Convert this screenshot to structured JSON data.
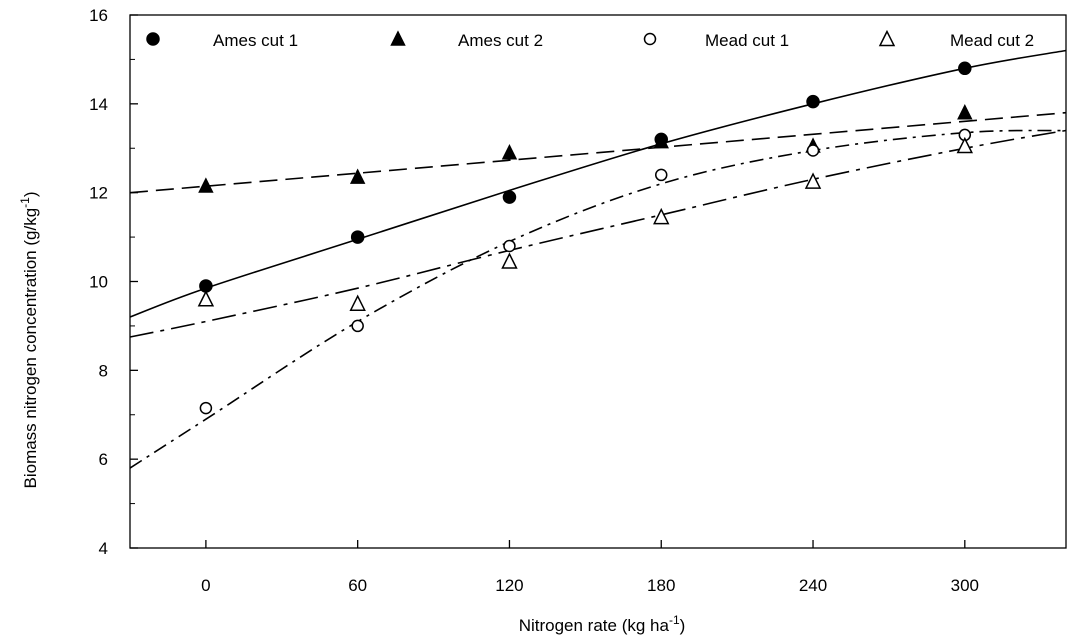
{
  "chart_data": {
    "type": "scatter",
    "title": "",
    "xlabel": "Nitrogen rate (kg ha",
    "xlabel_sup": "-1",
    "xlabel_close": ")",
    "ylabel": "Biomass nitrogen concentration (g/kg",
    "ylabel_sup": "-1",
    "ylabel_close": ")",
    "xlim": [
      -30,
      340
    ],
    "ylim": [
      4,
      16
    ],
    "xticks": [
      0,
      60,
      120,
      180,
      240,
      300
    ],
    "yticks": [
      4,
      6,
      8,
      10,
      12,
      14,
      16
    ],
    "grid": false,
    "legend_position": "top",
    "series": [
      {
        "name": "Ames cut 1",
        "marker": "filled-circle",
        "line": "solid",
        "x": [
          0,
          60,
          120,
          180,
          240,
          300
        ],
        "y": [
          9.9,
          11.0,
          11.9,
          13.2,
          14.05,
          14.8
        ],
        "fit_x": [
          -30,
          0,
          60,
          120,
          180,
          240,
          300,
          340
        ],
        "fit_y": [
          9.2,
          9.85,
          10.95,
          12.05,
          13.1,
          14.0,
          14.8,
          15.2
        ]
      },
      {
        "name": "Ames cut 2",
        "marker": "filled-triangle",
        "line": "dashed",
        "x": [
          0,
          60,
          120,
          180,
          240,
          300
        ],
        "y": [
          12.15,
          12.35,
          12.9,
          13.15,
          13.05,
          13.8
        ],
        "fit_x": [
          -30,
          340
        ],
        "fit_y": [
          12.0,
          13.8
        ]
      },
      {
        "name": "Mead cut 1",
        "marker": "open-circle",
        "line": "dash-dot",
        "x": [
          0,
          60,
          120,
          180,
          240,
          300
        ],
        "y": [
          7.15,
          9.0,
          10.8,
          12.4,
          12.95,
          13.3
        ],
        "fit_x": [
          -30,
          0,
          60,
          120,
          180,
          240,
          300,
          340
        ],
        "fit_y": [
          5.8,
          6.9,
          9.1,
          10.9,
          12.2,
          12.95,
          13.35,
          13.4
        ]
      },
      {
        "name": "Mead cut 2",
        "marker": "open-triangle",
        "line": "long-dash-dot",
        "x": [
          0,
          60,
          120,
          180,
          240,
          300
        ],
        "y": [
          9.6,
          9.5,
          10.45,
          11.45,
          12.25,
          13.05
        ],
        "fit_x": [
          -30,
          0,
          60,
          120,
          180,
          240,
          300,
          340
        ],
        "fit_y": [
          8.75,
          9.1,
          9.85,
          10.7,
          11.5,
          12.3,
          13.0,
          13.4
        ]
      }
    ]
  }
}
